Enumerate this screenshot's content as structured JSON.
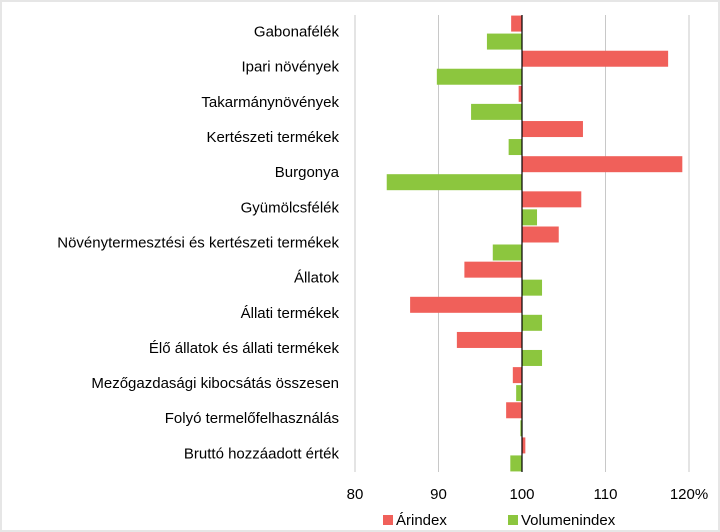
{
  "chart_data": {
    "type": "bar",
    "orientation": "horizontal",
    "categories": [
      "Gabonafélék",
      "Ipari növények",
      "Takarmánynövények",
      "Kertészeti termékek",
      "Burgonya",
      "Gyümölcsfélék",
      "Növénytermesztési és kertészeti termékek",
      "Állatok",
      "Állati termékek",
      "Élő állatok és állati termékek",
      "Mezőgazdasági kibocsátás összesen",
      "Folyó termelőfelhasználás",
      "Bruttó hozzáadott érték"
    ],
    "series": [
      {
        "name": "Árindex",
        "color": "#f0605a",
        "values": [
          98.7,
          117.5,
          99.6,
          107.3,
          119.2,
          107.1,
          104.4,
          93.1,
          86.6,
          92.2,
          98.9,
          98.1,
          100.4
        ]
      },
      {
        "name": "Volumenindex",
        "color": "#8cc63e",
        "values": [
          95.8,
          89.8,
          93.9,
          98.4,
          83.8,
          101.8,
          96.5,
          102.4,
          102.4,
          102.4,
          99.3,
          99.8,
          98.6
        ]
      }
    ],
    "base": 100,
    "xlim": [
      80,
      120
    ],
    "xticks": [
      80,
      90,
      100,
      110,
      {
        "value": 120,
        "label": "120%"
      }
    ],
    "grid": true,
    "legend": "bottom"
  }
}
